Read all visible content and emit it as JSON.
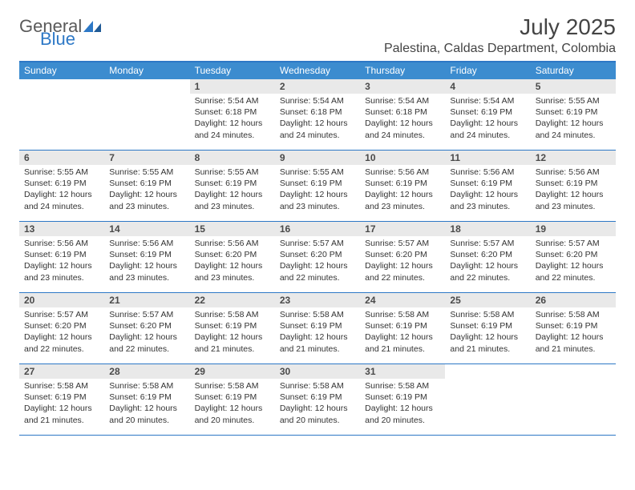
{
  "logo": {
    "general": "General",
    "blue": "Blue"
  },
  "header": {
    "title": "July 2025",
    "subtitle": "Palestina, Caldas Department, Colombia"
  },
  "colors": {
    "header_bar": "#3c8ccf",
    "border": "#2d78c6",
    "daynum_bg": "#e9e9e9",
    "logo_gray": "#5a5a5a",
    "logo_blue": "#2d78c6"
  },
  "dayNames": [
    "Sunday",
    "Monday",
    "Tuesday",
    "Wednesday",
    "Thursday",
    "Friday",
    "Saturday"
  ],
  "weeks": [
    [
      {
        "blank": true
      },
      {
        "blank": true
      },
      {
        "n": "1",
        "sr": "5:54 AM",
        "ss": "6:18 PM",
        "dl": "12 hours and 24 minutes."
      },
      {
        "n": "2",
        "sr": "5:54 AM",
        "ss": "6:18 PM",
        "dl": "12 hours and 24 minutes."
      },
      {
        "n": "3",
        "sr": "5:54 AM",
        "ss": "6:18 PM",
        "dl": "12 hours and 24 minutes."
      },
      {
        "n": "4",
        "sr": "5:54 AM",
        "ss": "6:19 PM",
        "dl": "12 hours and 24 minutes."
      },
      {
        "n": "5",
        "sr": "5:55 AM",
        "ss": "6:19 PM",
        "dl": "12 hours and 24 minutes."
      }
    ],
    [
      {
        "n": "6",
        "sr": "5:55 AM",
        "ss": "6:19 PM",
        "dl": "12 hours and 24 minutes."
      },
      {
        "n": "7",
        "sr": "5:55 AM",
        "ss": "6:19 PM",
        "dl": "12 hours and 23 minutes."
      },
      {
        "n": "8",
        "sr": "5:55 AM",
        "ss": "6:19 PM",
        "dl": "12 hours and 23 minutes."
      },
      {
        "n": "9",
        "sr": "5:55 AM",
        "ss": "6:19 PM",
        "dl": "12 hours and 23 minutes."
      },
      {
        "n": "10",
        "sr": "5:56 AM",
        "ss": "6:19 PM",
        "dl": "12 hours and 23 minutes."
      },
      {
        "n": "11",
        "sr": "5:56 AM",
        "ss": "6:19 PM",
        "dl": "12 hours and 23 minutes."
      },
      {
        "n": "12",
        "sr": "5:56 AM",
        "ss": "6:19 PM",
        "dl": "12 hours and 23 minutes."
      }
    ],
    [
      {
        "n": "13",
        "sr": "5:56 AM",
        "ss": "6:19 PM",
        "dl": "12 hours and 23 minutes."
      },
      {
        "n": "14",
        "sr": "5:56 AM",
        "ss": "6:19 PM",
        "dl": "12 hours and 23 minutes."
      },
      {
        "n": "15",
        "sr": "5:56 AM",
        "ss": "6:20 PM",
        "dl": "12 hours and 23 minutes."
      },
      {
        "n": "16",
        "sr": "5:57 AM",
        "ss": "6:20 PM",
        "dl": "12 hours and 22 minutes."
      },
      {
        "n": "17",
        "sr": "5:57 AM",
        "ss": "6:20 PM",
        "dl": "12 hours and 22 minutes."
      },
      {
        "n": "18",
        "sr": "5:57 AM",
        "ss": "6:20 PM",
        "dl": "12 hours and 22 minutes."
      },
      {
        "n": "19",
        "sr": "5:57 AM",
        "ss": "6:20 PM",
        "dl": "12 hours and 22 minutes."
      }
    ],
    [
      {
        "n": "20",
        "sr": "5:57 AM",
        "ss": "6:20 PM",
        "dl": "12 hours and 22 minutes."
      },
      {
        "n": "21",
        "sr": "5:57 AM",
        "ss": "6:20 PM",
        "dl": "12 hours and 22 minutes."
      },
      {
        "n": "22",
        "sr": "5:58 AM",
        "ss": "6:19 PM",
        "dl": "12 hours and 21 minutes."
      },
      {
        "n": "23",
        "sr": "5:58 AM",
        "ss": "6:19 PM",
        "dl": "12 hours and 21 minutes."
      },
      {
        "n": "24",
        "sr": "5:58 AM",
        "ss": "6:19 PM",
        "dl": "12 hours and 21 minutes."
      },
      {
        "n": "25",
        "sr": "5:58 AM",
        "ss": "6:19 PM",
        "dl": "12 hours and 21 minutes."
      },
      {
        "n": "26",
        "sr": "5:58 AM",
        "ss": "6:19 PM",
        "dl": "12 hours and 21 minutes."
      }
    ],
    [
      {
        "n": "27",
        "sr": "5:58 AM",
        "ss": "6:19 PM",
        "dl": "12 hours and 21 minutes."
      },
      {
        "n": "28",
        "sr": "5:58 AM",
        "ss": "6:19 PM",
        "dl": "12 hours and 20 minutes."
      },
      {
        "n": "29",
        "sr": "5:58 AM",
        "ss": "6:19 PM",
        "dl": "12 hours and 20 minutes."
      },
      {
        "n": "30",
        "sr": "5:58 AM",
        "ss": "6:19 PM",
        "dl": "12 hours and 20 minutes."
      },
      {
        "n": "31",
        "sr": "5:58 AM",
        "ss": "6:19 PM",
        "dl": "12 hours and 20 minutes."
      },
      {
        "blank": true
      },
      {
        "blank": true
      }
    ]
  ],
  "labels": {
    "sunrise": "Sunrise: ",
    "sunset": "Sunset: ",
    "daylight": "Daylight: "
  }
}
